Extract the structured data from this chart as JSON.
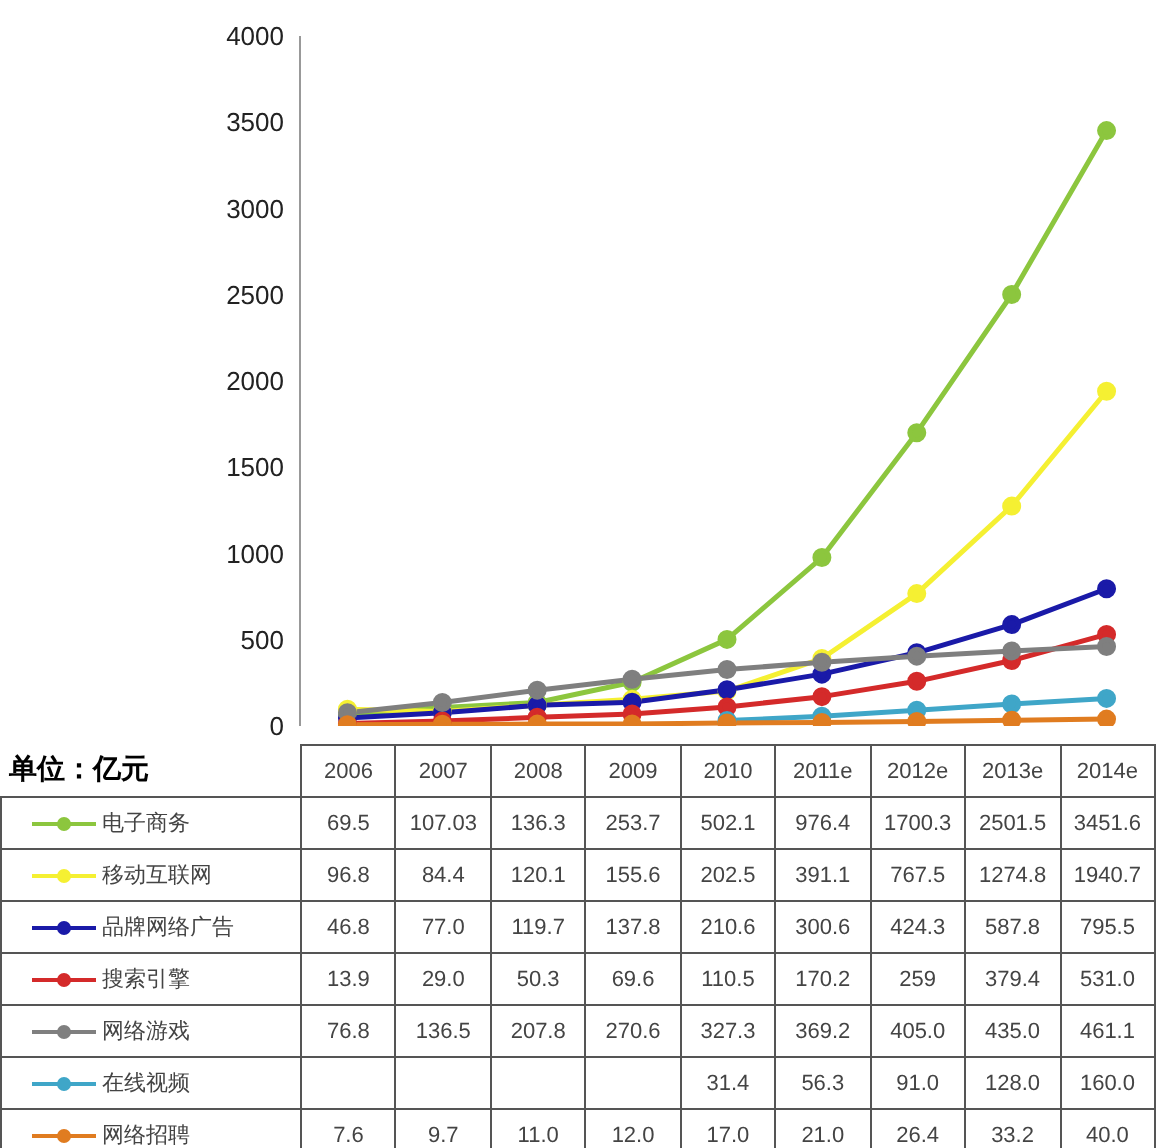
{
  "chart_data": {
    "type": "line",
    "categories": [
      "2006",
      "2007",
      "2008",
      "2009",
      "2010",
      "2011e",
      "2012e",
      "2013e",
      "2014e"
    ],
    "series": [
      {
        "name": "电子商务",
        "color": "#8cc63e",
        "values": [
          69.5,
          107.03,
          136.3,
          253.7,
          502.1,
          976.4,
          1700.3,
          2501.5,
          3451.6
        ],
        "value_labels": [
          "69.5",
          "107.03",
          "136.3",
          "253.7",
          "502.1",
          "976.4",
          "1700.3",
          "2501.5",
          "3451.6"
        ]
      },
      {
        "name": "移动互联网",
        "color": "#f5f032",
        "values": [
          96.8,
          84.4,
          120.1,
          155.6,
          202.5,
          391.1,
          767.5,
          1274.8,
          1940.7
        ],
        "value_labels": [
          "96.8",
          "84.4",
          "120.1",
          "155.6",
          "202.5",
          "391.1",
          "767.5",
          "1274.8",
          "1940.7"
        ]
      },
      {
        "name": "品牌网络广告",
        "color": "#1a1aa8",
        "values": [
          46.8,
          77.0,
          119.7,
          137.8,
          210.6,
          300.6,
          424.3,
          587.8,
          795.5
        ],
        "value_labels": [
          "46.8",
          "77.0",
          "119.7",
          "137.8",
          "210.6",
          "300.6",
          "424.3",
          "587.8",
          "795.5"
        ]
      },
      {
        "name": "搜索引擎",
        "color": "#d42a2a",
        "values": [
          13.9,
          29.0,
          50.3,
          69.6,
          110.5,
          170.2,
          259,
          379.4,
          531.0
        ],
        "value_labels": [
          "13.9",
          "29.0",
          "50.3",
          "69.6",
          "110.5",
          "170.2",
          "259",
          "379.4",
          "531.0"
        ]
      },
      {
        "name": "网络游戏",
        "color": "#7f7f7f",
        "values": [
          76.8,
          136.5,
          207.8,
          270.6,
          327.3,
          369.2,
          405.0,
          435.0,
          461.1
        ],
        "value_labels": [
          "76.8",
          "136.5",
          "207.8",
          "270.6",
          "327.3",
          "369.2",
          "405.0",
          "435.0",
          "461.1"
        ]
      },
      {
        "name": "在线视频",
        "color": "#3fa6c8",
        "values": [
          null,
          null,
          null,
          null,
          31.4,
          56.3,
          91.0,
          128.0,
          160.0
        ],
        "value_labels": [
          null,
          null,
          null,
          null,
          "31.4",
          "56.3",
          "91.0",
          "128.0",
          "160.0"
        ]
      },
      {
        "name": "网络招聘",
        "color": "#e07c20",
        "values": [
          7.6,
          9.7,
          11.0,
          12.0,
          17.0,
          21.0,
          26.4,
          33.2,
          40.0
        ],
        "value_labels": [
          "7.6",
          "9.7",
          "11.0",
          "12.0",
          "17.0",
          "21.0",
          "26.4",
          "33.2",
          "40.0"
        ]
      }
    ],
    "ylim": [
      0,
      4000
    ],
    "yticks": [
      0,
      500,
      1000,
      1500,
      2000,
      2500,
      3000,
      3500,
      4000
    ],
    "grid": false,
    "marker": "circle",
    "line_style": "solid",
    "legend": "bottom",
    "annotations": [
      "单位：亿元"
    ]
  }
}
